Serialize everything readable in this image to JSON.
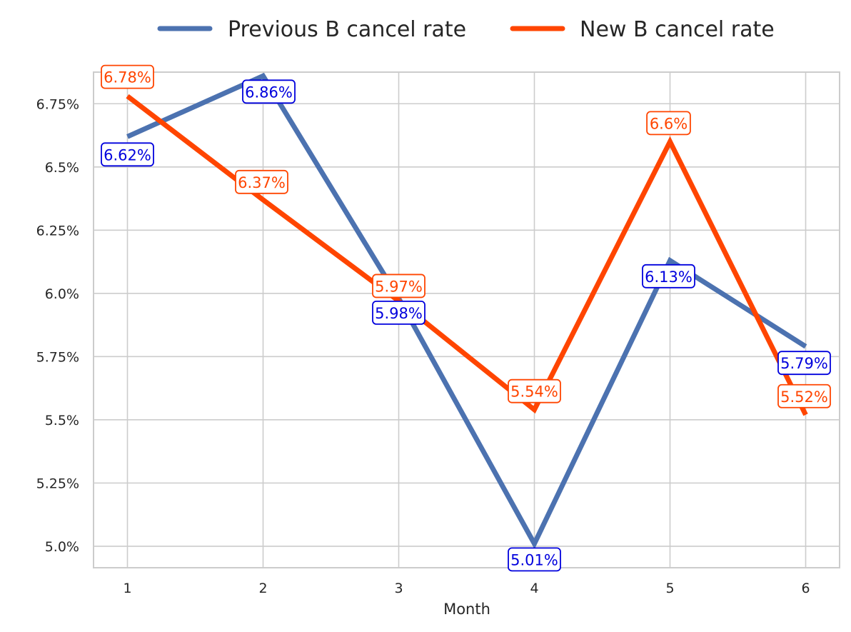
{
  "chart_data": {
    "type": "line",
    "title": "",
    "xlabel": "Month",
    "ylabel": "",
    "x": [
      1,
      2,
      3,
      4,
      5,
      6
    ],
    "x_tick_labels": [
      "1",
      "2",
      "3",
      "4",
      "5",
      "6"
    ],
    "y_ticks": [
      5.0,
      5.25,
      5.5,
      5.75,
      6.0,
      6.25,
      6.5,
      6.75
    ],
    "y_tick_labels": [
      "5.0%",
      "5.25%",
      "5.5%",
      "5.75%",
      "6.0%",
      "6.25%",
      "6.5%",
      "6.75%"
    ],
    "ylim": [
      4.915,
      6.875
    ],
    "xlim": [
      0.75,
      6.25
    ],
    "grid": true,
    "legend_position": "top-center",
    "series": [
      {
        "name": "Previous B cancel rate",
        "color": "#4c72b0",
        "label_color": "#0000dd",
        "values": [
          6.62,
          6.86,
          5.98,
          5.01,
          6.13,
          5.79
        ],
        "labels": [
          "6.62%",
          "6.86%",
          "5.98%",
          "5.01%",
          "6.13%",
          "5.79%"
        ]
      },
      {
        "name": "New B cancel rate",
        "color": "#ff4500",
        "label_color": "#ff4500",
        "values": [
          6.78,
          6.37,
          5.97,
          5.54,
          6.6,
          5.52
        ],
        "labels": [
          "6.78%",
          "6.37%",
          "5.97%",
          "5.54%",
          "6.6%",
          "5.52%"
        ]
      }
    ]
  }
}
